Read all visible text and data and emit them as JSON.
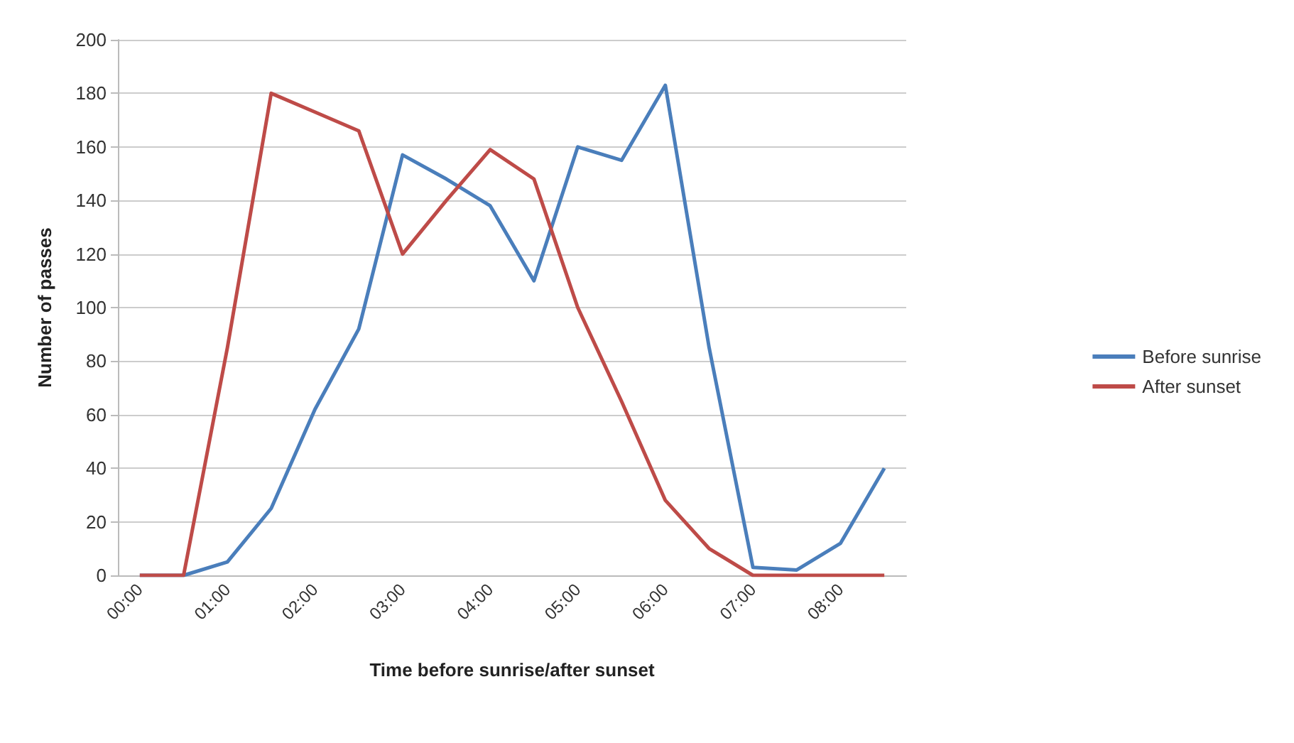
{
  "chart_data": {
    "type": "line",
    "xlabel": "Time before sunrise/after sunset",
    "ylabel": "Number of passes",
    "categories": [
      "00:00",
      null,
      "01:00",
      null,
      "02:00",
      null,
      "03:00",
      null,
      "04:00",
      null,
      "05:00",
      null,
      "06:00",
      null,
      "07:00",
      null,
      "08:00",
      null
    ],
    "series": [
      {
        "name": "Before sunrise",
        "color": "#4a7ebb",
        "values": [
          0,
          0,
          5,
          25,
          62,
          92,
          157,
          148,
          138,
          110,
          160,
          155,
          183,
          85,
          3,
          2,
          12,
          40
        ]
      },
      {
        "name": "After sunset",
        "color": "#be4b48",
        "values": [
          0,
          0,
          85,
          180,
          173,
          166,
          120,
          140,
          159,
          148,
          100,
          65,
          28,
          10,
          0,
          0,
          0,
          0
        ]
      }
    ],
    "ylim": [
      0,
      200
    ],
    "yticks": [
      0,
      20,
      40,
      60,
      80,
      100,
      120,
      140,
      160,
      180,
      200
    ],
    "grid": "y",
    "legend": "right",
    "marker": "none"
  }
}
